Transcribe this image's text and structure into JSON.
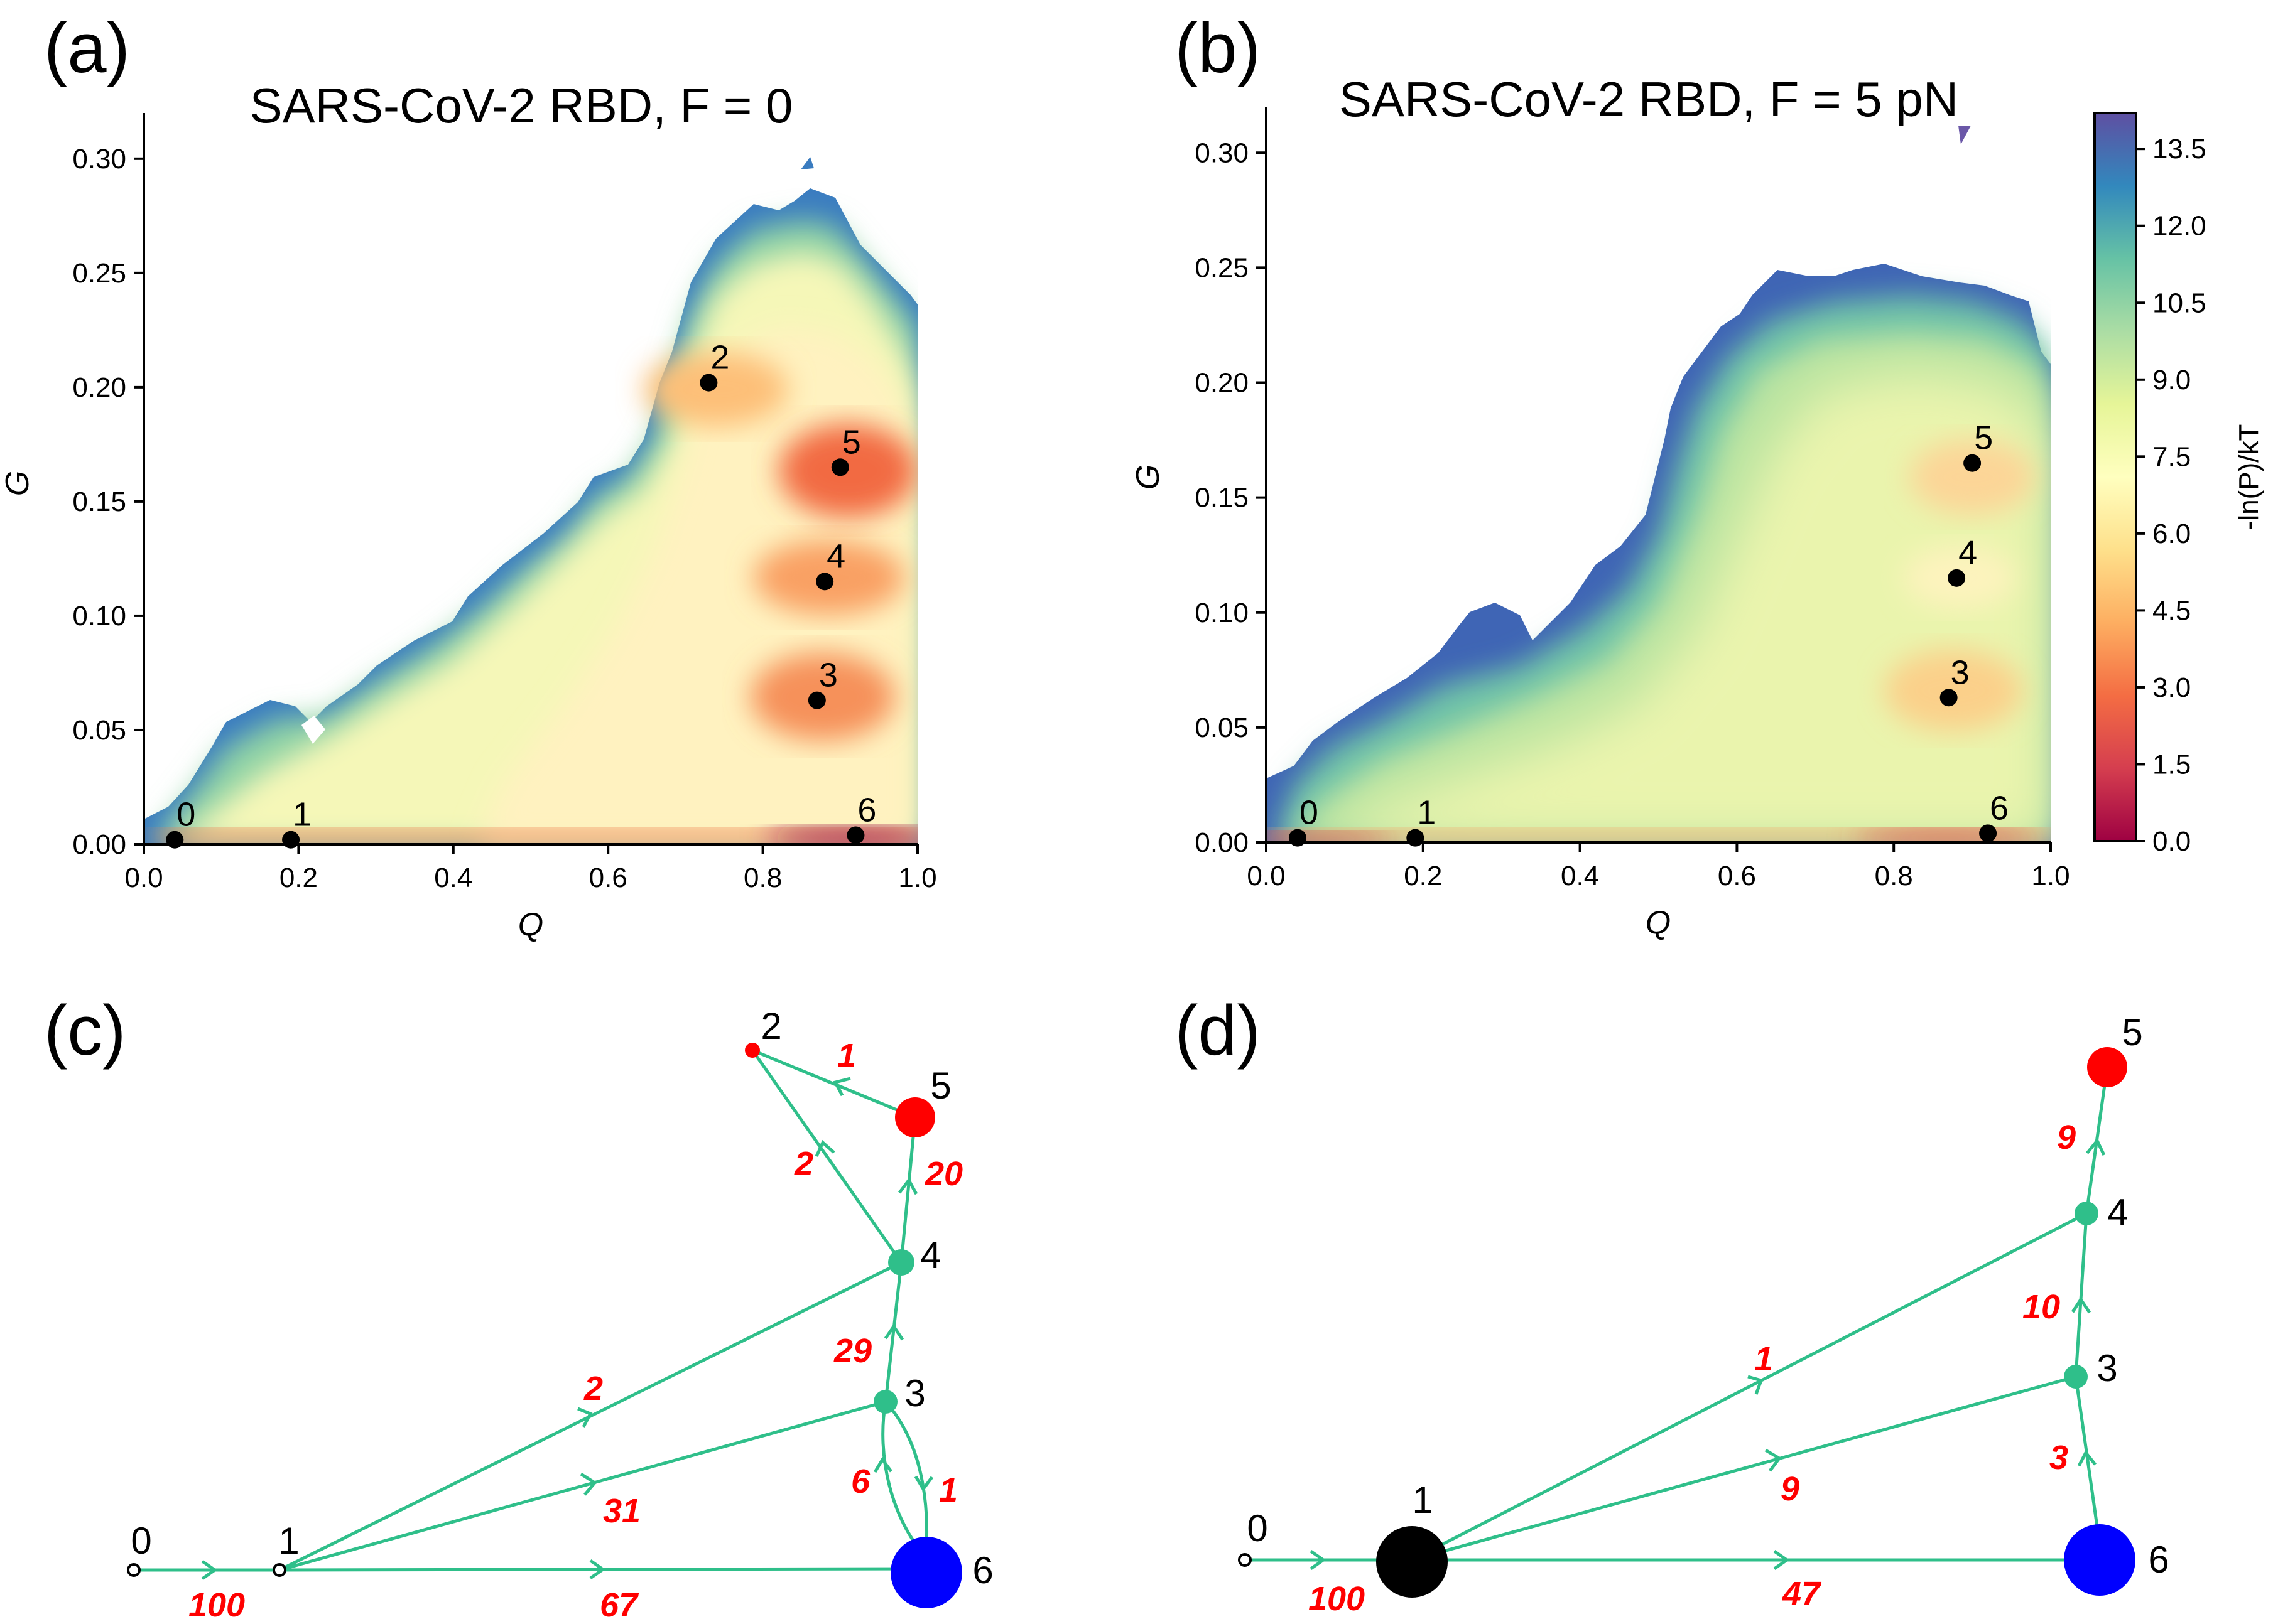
{
  "panels": {
    "a": "(a)",
    "b": "(b)",
    "c": "(c)",
    "d": "(d)"
  },
  "colorbar": {
    "label": "-ln(P)/kT",
    "ticks": [
      "0.0",
      "1.5",
      "3.0",
      "4.5",
      "6.0",
      "7.5",
      "9.0",
      "10.5",
      "12.0",
      "13.5"
    ],
    "range": [
      0,
      14.2
    ],
    "colors": [
      "#9e0142",
      "#d53e4f",
      "#f46d43",
      "#fdae61",
      "#fee08b",
      "#ffffbf",
      "#e6f598",
      "#abdda4",
      "#66c2a5",
      "#3288bd",
      "#5e4fa2"
    ]
  },
  "colors": {
    "edge": "#2fbf8a",
    "node_green": "#2fbf8a",
    "node_red": "#ff0000",
    "node_blue": "#0000ff",
    "node_black": "#000000",
    "flux_text": "#ff0000"
  },
  "chart_data": [
    {
      "type": "heatmap",
      "id": "a",
      "title": "SARS-CoV-2 RBD, F = 0",
      "xlabel": "Q",
      "ylabel": "G",
      "xlim": [
        0,
        1.0
      ],
      "ylim": [
        0,
        0.32
      ],
      "xticks": [
        "0.0",
        "0.2",
        "0.4",
        "0.6",
        "0.8",
        "1.0"
      ],
      "yticks": [
        "0.00",
        "0.05",
        "0.10",
        "0.15",
        "0.20",
        "0.25",
        "0.30"
      ],
      "states": [
        {
          "label": "0",
          "q": 0.04,
          "g": 0.002
        },
        {
          "label": "1",
          "q": 0.19,
          "g": 0.002
        },
        {
          "label": "2",
          "q": 0.73,
          "g": 0.202
        },
        {
          "label": "3",
          "q": 0.87,
          "g": 0.063
        },
        {
          "label": "4",
          "q": 0.88,
          "g": 0.115
        },
        {
          "label": "5",
          "q": 0.9,
          "g": 0.165
        },
        {
          "label": "6",
          "q": 0.92,
          "g": 0.004
        }
      ]
    },
    {
      "type": "heatmap",
      "id": "b",
      "title": "SARS-CoV-2 RBD, F = 5 pN",
      "xlabel": "Q",
      "ylabel": "G",
      "xlim": [
        0,
        1.0
      ],
      "ylim": [
        0,
        0.32
      ],
      "xticks": [
        "0.0",
        "0.2",
        "0.4",
        "0.6",
        "0.8",
        "1.0"
      ],
      "yticks": [
        "0.00",
        "0.05",
        "0.10",
        "0.15",
        "0.20",
        "0.25",
        "0.30"
      ],
      "states": [
        {
          "label": "0",
          "q": 0.04,
          "g": 0.002
        },
        {
          "label": "1",
          "q": 0.19,
          "g": 0.002
        },
        {
          "label": "3",
          "q": 0.87,
          "g": 0.063
        },
        {
          "label": "4",
          "q": 0.88,
          "g": 0.115
        },
        {
          "label": "5",
          "q": 0.9,
          "g": 0.165
        },
        {
          "label": "6",
          "q": 0.92,
          "g": 0.004
        }
      ]
    },
    {
      "type": "network",
      "id": "c",
      "nodes": [
        {
          "id": "0",
          "label": "0",
          "kind": "open"
        },
        {
          "id": "1",
          "label": "1",
          "kind": "open"
        },
        {
          "id": "2",
          "label": "2",
          "kind": "red_small"
        },
        {
          "id": "3",
          "label": "3",
          "kind": "green"
        },
        {
          "id": "4",
          "label": "4",
          "kind": "green"
        },
        {
          "id": "5",
          "label": "5",
          "kind": "red"
        },
        {
          "id": "6",
          "label": "6",
          "kind": "blue"
        }
      ],
      "edges": [
        {
          "from": "0",
          "to": "1",
          "flux": "100"
        },
        {
          "from": "1",
          "to": "6",
          "flux": "67"
        },
        {
          "from": "1",
          "to": "3",
          "flux": "31"
        },
        {
          "from": "1",
          "to": "4",
          "flux": "2"
        },
        {
          "from": "6",
          "to": "3",
          "flux": "6"
        },
        {
          "from": "3",
          "to": "6",
          "flux": "1"
        },
        {
          "from": "3",
          "to": "4",
          "flux": "29"
        },
        {
          "from": "4",
          "to": "5",
          "flux": "20"
        },
        {
          "from": "4",
          "to": "2",
          "flux": "2"
        },
        {
          "from": "5",
          "to": "2",
          "flux": "1"
        }
      ]
    },
    {
      "type": "network",
      "id": "d",
      "nodes": [
        {
          "id": "0",
          "label": "0",
          "kind": "open"
        },
        {
          "id": "1",
          "label": "1",
          "kind": "black"
        },
        {
          "id": "3",
          "label": "3",
          "kind": "green"
        },
        {
          "id": "4",
          "label": "4",
          "kind": "green"
        },
        {
          "id": "5",
          "label": "5",
          "kind": "red"
        },
        {
          "id": "6",
          "label": "6",
          "kind": "blue"
        }
      ],
      "edges": [
        {
          "from": "0",
          "to": "1",
          "flux": "100"
        },
        {
          "from": "1",
          "to": "6",
          "flux": "47"
        },
        {
          "from": "1",
          "to": "3",
          "flux": "9"
        },
        {
          "from": "1",
          "to": "4",
          "flux": "1"
        },
        {
          "from": "6",
          "to": "3",
          "flux": "3"
        },
        {
          "from": "3",
          "to": "4",
          "flux": "10"
        },
        {
          "from": "4",
          "to": "5",
          "flux": "9"
        }
      ]
    }
  ]
}
